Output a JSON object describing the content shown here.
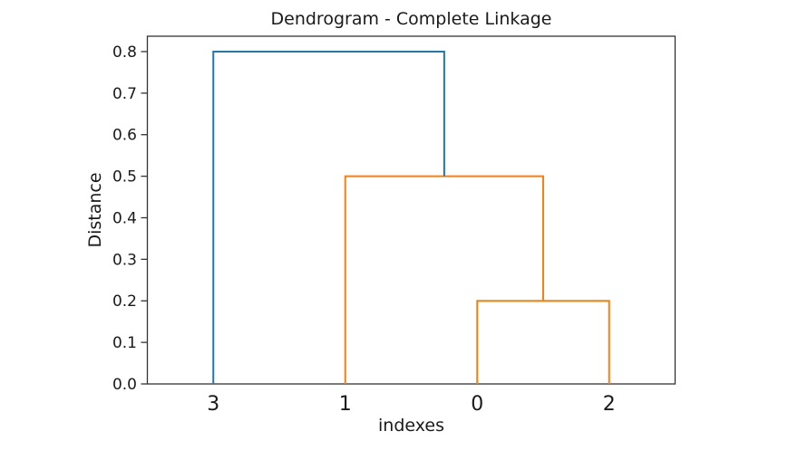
{
  "chart_data": {
    "type": "dendrogram",
    "title": "Dendrogram - Complete Linkage",
    "xlabel": "indexes",
    "ylabel": "Distance",
    "xlim": [
      0,
      40
    ],
    "ylim": [
      0,
      0.837
    ],
    "grid": false,
    "yticks": [
      {
        "value": 0.0,
        "label": "0.0"
      },
      {
        "value": 0.1,
        "label": "0.1"
      },
      {
        "value": 0.2,
        "label": "0.2"
      },
      {
        "value": 0.3,
        "label": "0.3"
      },
      {
        "value": 0.4,
        "label": "0.4"
      },
      {
        "value": 0.5,
        "label": "0.5"
      },
      {
        "value": 0.6,
        "label": "0.6"
      },
      {
        "value": 0.7,
        "label": "0.7"
      },
      {
        "value": 0.8,
        "label": "0.8"
      }
    ],
    "leaves": [
      {
        "label": "3",
        "x": 5
      },
      {
        "label": "1",
        "x": 15
      },
      {
        "label": "0",
        "x": 25
      },
      {
        "label": "2",
        "x": 35
      }
    ],
    "links": [
      {
        "name": "merge-0-2",
        "x1": 25,
        "h1": 0,
        "x2": 35,
        "h2": 0,
        "height": 0.2,
        "color": "#ff7f0e"
      },
      {
        "name": "merge-1-02",
        "x1": 15,
        "h1": 0,
        "x2": 30,
        "h2": 0.2,
        "height": 0.5,
        "color": "#ff7f0e"
      },
      {
        "name": "merge-3-102",
        "x1": 5,
        "h1": 0,
        "x2": 22.5,
        "h2": 0.5,
        "height": 0.8,
        "color": "#1f77b4"
      }
    ],
    "colors": {
      "above_threshold_link": "#1f77b4",
      "cluster_link": "#ff7f0e",
      "spine": "#333333",
      "text": "#1a1a1a"
    }
  }
}
